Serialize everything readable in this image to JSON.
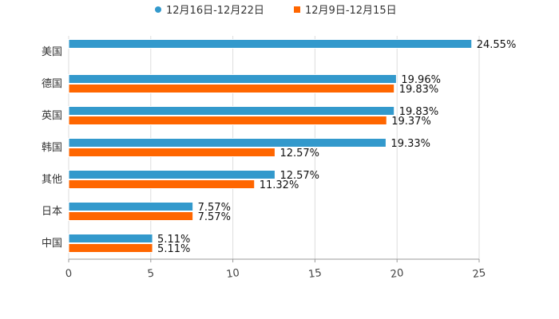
{
  "chart_data": {
    "type": "bar",
    "orientation": "horizontal",
    "categories": [
      "美国",
      "德国",
      "英国",
      "韩国",
      "其他",
      "日本",
      "中国"
    ],
    "series": [
      {
        "name": "12月16日-12月22日",
        "color": "#3399cc",
        "values": [
          24.55,
          19.96,
          19.83,
          19.33,
          12.57,
          7.57,
          5.11
        ],
        "labels": [
          "24.55%",
          "19.96%",
          "19.83%",
          "19.33%",
          "12.57%",
          "7.57%",
          "5.11%"
        ]
      },
      {
        "name": "12月9日-12月15日",
        "color": "#ff6600",
        "values": [
          null,
          19.83,
          19.37,
          12.57,
          11.32,
          7.57,
          5.11
        ],
        "labels": [
          null,
          "19.83%",
          "19.37%",
          "12.57%",
          "11.32%",
          "7.57%",
          "5.11%"
        ]
      }
    ],
    "xlim": [
      0,
      25
    ],
    "xticks": [
      0,
      5,
      10,
      15,
      20,
      25
    ],
    "xtick_labels": [
      "0",
      "5",
      "10",
      "15",
      "20",
      "25"
    ],
    "title": "",
    "xlabel": "",
    "ylabel": "",
    "grid": true,
    "legend_position": "top-center"
  }
}
